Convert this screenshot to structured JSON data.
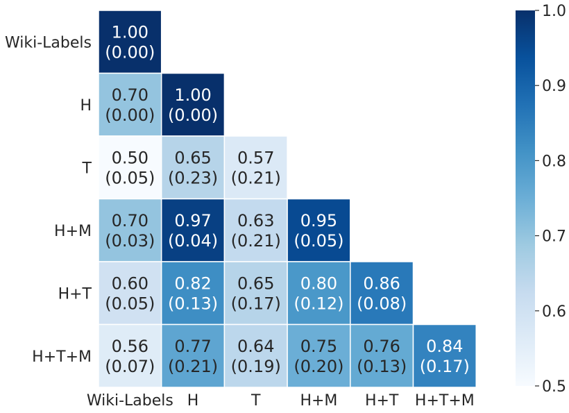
{
  "chart_data": {
    "type": "heatmap",
    "mask": "lower-triangle",
    "rows": [
      "Wiki-Labels",
      "H",
      "T",
      "H+M",
      "H+T",
      "H+T+M"
    ],
    "columns": [
      "Wiki-Labels",
      "H",
      "T",
      "H+M",
      "H+T",
      "H+T+M"
    ],
    "values": [
      [
        1.0,
        null,
        null,
        null,
        null,
        null
      ],
      [
        0.7,
        1.0,
        null,
        null,
        null,
        null
      ],
      [
        0.5,
        0.65,
        0.57,
        null,
        null,
        null
      ],
      [
        0.7,
        0.97,
        0.63,
        0.95,
        null,
        null
      ],
      [
        0.6,
        0.82,
        0.65,
        0.8,
        0.86,
        null
      ],
      [
        0.56,
        0.77,
        0.64,
        0.75,
        0.76,
        0.84
      ]
    ],
    "annotations": [
      [
        "1.00\n(0.00)",
        null,
        null,
        null,
        null,
        null
      ],
      [
        "0.70\n(0.00)",
        "1.00\n(0.00)",
        null,
        null,
        null,
        null
      ],
      [
        "0.50\n(0.05)",
        "0.65\n(0.23)",
        "0.57\n(0.21)",
        null,
        null,
        null
      ],
      [
        "0.70\n(0.03)",
        "0.97\n(0.04)",
        "0.63\n(0.21)",
        "0.95\n(0.05)",
        null,
        null
      ],
      [
        "0.60\n(0.05)",
        "0.82\n(0.13)",
        "0.65\n(0.17)",
        "0.80\n(0.12)",
        "0.86\n(0.08)",
        null
      ],
      [
        "0.56\n(0.07)",
        "0.77\n(0.21)",
        "0.64\n(0.19)",
        "0.75\n(0.20)",
        "0.76\n(0.13)",
        "0.84\n(0.17)"
      ]
    ],
    "colorbar": {
      "colormap": "Blues",
      "range": [
        0.5,
        1.0
      ],
      "ticks": [
        0.5,
        0.6,
        0.7,
        0.8,
        0.9,
        1.0
      ],
      "tick_labels": [
        "0.5",
        "0.6",
        "0.7",
        "0.8",
        "0.9",
        "1.0"
      ]
    }
  }
}
